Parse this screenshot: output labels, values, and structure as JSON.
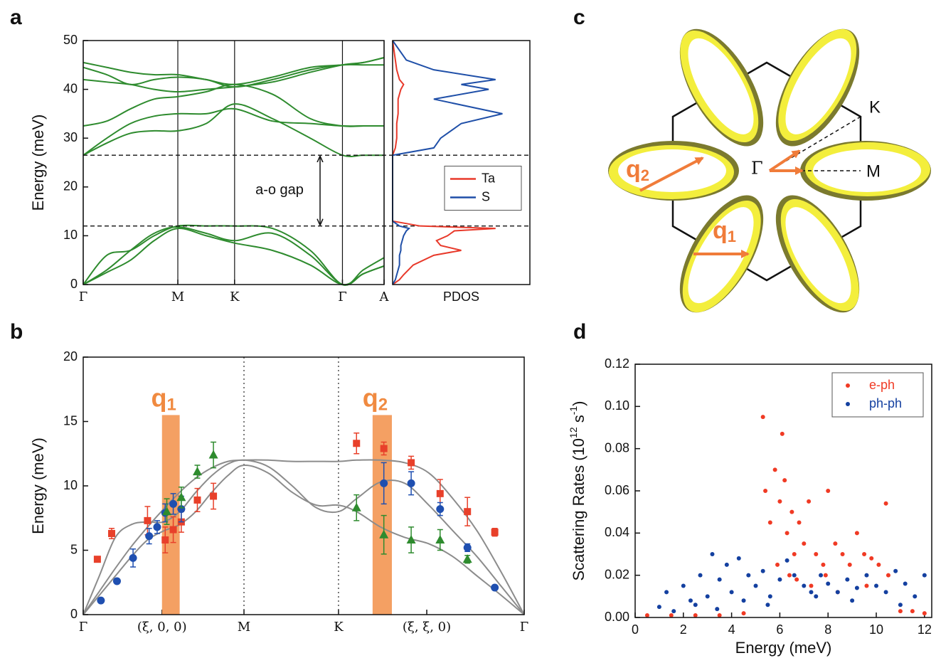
{
  "panel_labels": [
    "a",
    "b",
    "c",
    "d"
  ],
  "diagram": {
    "gamma": "Γ",
    "K": "K",
    "M": "M",
    "q2": {
      "symbol": "q",
      "index": "2"
    },
    "q1": {
      "symbol": "q",
      "index": "1"
    }
  },
  "chart_data": [
    {
      "type": "line",
      "y_label": "Energy (meV)",
      "xlim": [
        0,
        3.18
      ],
      "ylim": [
        0,
        50
      ],
      "xticks": [
        {
          "value": 0,
          "label": "Γ"
        },
        {
          "value": 1,
          "label": "M"
        },
        {
          "value": 1.6,
          "label": "K"
        },
        {
          "value": 2.74,
          "label": "Γ"
        },
        {
          "value": 3.18,
          "label": "A"
        }
      ],
      "yticks": [
        0,
        10,
        20,
        30,
        40,
        50
      ],
      "tick_lines": true,
      "reference_lines": {
        "y": [
          26.5,
          12
        ],
        "style": "dashed"
      },
      "annotation": "a-o gap",
      "x": [
        0,
        0.25,
        0.5,
        0.75,
        1,
        1.3,
        1.6,
        2.0,
        2.4,
        2.74,
        2.96,
        3.18
      ],
      "series": [
        {
          "color": "#2e8b2e",
          "values": [
            0,
            6,
            7,
            10,
            12,
            12,
            12,
            11.5,
            7,
            0,
            3,
            5.5
          ]
        },
        {
          "color": "#2e8b2e",
          "values": [
            0,
            3,
            7,
            10.5,
            11.8,
            10.5,
            9,
            10.5,
            6,
            0,
            2.2,
            3.8
          ]
        },
        {
          "color": "#2e8b2e",
          "values": [
            0,
            2.5,
            5,
            9,
            11.5,
            10,
            8.5,
            7,
            4,
            0,
            2.2,
            3.8
          ]
        },
        {
          "color": "#2e8b2e",
          "values": [
            26.5,
            29,
            31,
            31.5,
            31.5,
            33,
            37,
            34,
            30,
            26.5,
            26.5,
            26.5
          ]
        },
        {
          "color": "#2e8b2e",
          "values": [
            26.5,
            30,
            33,
            34.5,
            35,
            35,
            36,
            33.5,
            33,
            32.5,
            32.5,
            32.5
          ]
        },
        {
          "color": "#2e8b2e",
          "values": [
            32.5,
            33.5,
            36,
            38,
            38.5,
            39.5,
            41,
            39,
            34,
            32.5,
            32.5,
            32.5
          ]
        },
        {
          "color": "#2e8b2e",
          "values": [
            44.5,
            43,
            41,
            42,
            42.5,
            42,
            40.5,
            42,
            44,
            45,
            45,
            45
          ]
        },
        {
          "color": "#2e8b2e",
          "values": [
            45.5,
            44.5,
            43.5,
            43,
            43,
            42,
            41,
            42.5,
            44.5,
            45,
            45.5,
            46.5
          ]
        },
        {
          "color": "#2e8b2e",
          "values": [
            42,
            41.5,
            41,
            40,
            39.5,
            40,
            40.5,
            41.5,
            43.5,
            45,
            45.5,
            46.5
          ]
        }
      ]
    },
    {
      "type": "profile",
      "x_label": "PDOS",
      "xlim": [
        0,
        1
      ],
      "ylim": [
        0,
        50
      ],
      "legend": "center-right",
      "energy": [
        0,
        1,
        2,
        4,
        6,
        7,
        8,
        9,
        10,
        11,
        11.5,
        12,
        13,
        20,
        26.5,
        28,
        30,
        33,
        35,
        38,
        40,
        41,
        42,
        44,
        46,
        50
      ],
      "series": [
        {
          "name": "Ta",
          "color": "#e8392a",
          "values": [
            0,
            0.05,
            0.08,
            0.15,
            0.3,
            0.5,
            0.35,
            0.32,
            0.4,
            0.45,
            0.75,
            0.2,
            0,
            0,
            0,
            0.02,
            0.03,
            0.03,
            0.04,
            0.04,
            0.06,
            0.08,
            0.05,
            0.03,
            0.02,
            0
          ]
        },
        {
          "name": "S",
          "color": "#1f4fa8",
          "values": [
            0,
            0.02,
            0.03,
            0.05,
            0.05,
            0.06,
            0.06,
            0.07,
            0.08,
            0.1,
            0.12,
            0.05,
            0,
            0,
            0,
            0.3,
            0.35,
            0.5,
            0.8,
            0.3,
            0.7,
            0.5,
            0.75,
            0.3,
            0.1,
            0
          ]
        }
      ]
    },
    {
      "type": "errorbar",
      "y_label": "Energy (meV)",
      "xlim": [
        0,
        2.743
      ],
      "ylim": [
        0,
        20
      ],
      "xticks": [
        {
          "value": 0,
          "label": "Γ"
        },
        {
          "value": 0.49,
          "label": "(ξ, 0, 0)"
        },
        {
          "value": 1,
          "label": "M"
        },
        {
          "value": 1.588,
          "label": "K"
        },
        {
          "value": 2.137,
          "label": "(ξ, ξ, 0)"
        },
        {
          "value": 2.743,
          "label": "Γ"
        }
      ],
      "yticks": [
        0,
        5,
        10,
        15,
        20
      ],
      "reference_lines": {
        "x": [
          1,
          1.588
        ],
        "style": "dotted"
      },
      "highlights": [
        {
          "symbol": "q",
          "index": "1",
          "x": [
            0.49,
            0.6
          ],
          "top": 15.5,
          "color": "#f4a063"
        },
        {
          "symbol": "q",
          "index": "2",
          "x": [
            1.8,
            1.92
          ],
          "top": 15.5,
          "color": "#f4a063"
        }
      ],
      "curves": {
        "color": "#8c8c8c",
        "x": [
          0,
          0.1,
          0.2,
          0.3,
          0.4,
          0.5,
          0.6,
          0.7,
          0.8,
          0.9,
          1,
          1.15,
          1.3,
          1.45,
          1.588,
          1.7,
          1.85,
          2.0,
          2.15,
          2.3,
          2.45,
          2.6,
          2.743
        ],
        "series": [
          [
            0,
            3,
            6,
            7,
            7.2,
            7.2,
            8,
            9.5,
            10.8,
            11.7,
            12,
            11.5,
            10,
            8.3,
            8,
            9,
            10.3,
            10.2,
            8.5,
            6.5,
            4.5,
            2.2,
            0
          ],
          [
            0,
            1.8,
            3.6,
            5.3,
            6.8,
            8.2,
            9.5,
            10.6,
            11.4,
            11.9,
            12,
            12,
            11.9,
            11.9,
            11.9,
            12,
            12,
            11.8,
            11,
            9,
            6.5,
            3.3,
            0
          ],
          [
            0,
            1.5,
            3,
            4.5,
            5.8,
            6.5,
            7,
            8,
            9.5,
            10.8,
            11.6,
            11,
            9.5,
            8.5,
            8.5,
            8,
            6.8,
            6,
            5.5,
            4.5,
            3,
            1.5,
            0
          ]
        ]
      },
      "series": [
        {
          "marker": "square",
          "color": "#e8402a",
          "x": [
            0.088,
            0.177,
            0.4,
            0.51,
            0.56,
            0.61,
            0.71,
            0.81,
            1.7,
            1.87,
            2.04,
            2.22,
            2.39,
            2.56
          ],
          "values": [
            4.3,
            6.3,
            7.3,
            5.8,
            6.6,
            7.2,
            8.9,
            9.2,
            13.3,
            12.9,
            11.8,
            9.4,
            8.0,
            6.4
          ],
          "errors": [
            0,
            0.4,
            1.1,
            1.0,
            1.0,
            0.8,
            0.9,
            1.0,
            0.8,
            0.5,
            0.5,
            1.1,
            1.1,
            0.3
          ]
        },
        {
          "marker": "circle",
          "color": "#1f4fb0",
          "x": [
            0.11,
            0.21,
            0.31,
            0.41,
            0.46,
            0.51,
            0.56,
            0.61,
            1.87,
            2.04,
            2.22,
            2.39,
            2.56
          ],
          "values": [
            1.1,
            2.6,
            4.4,
            6.1,
            6.8,
            7.9,
            8.6,
            8.2,
            10.2,
            10.2,
            8.2,
            5.2,
            2.1
          ],
          "errors": [
            0,
            0,
            0.7,
            0.6,
            0.5,
            0.7,
            0.8,
            1.0,
            1.6,
            0.9,
            0.5,
            0.3,
            0
          ]
        },
        {
          "marker": "triangle",
          "color": "#2e8b2e",
          "x": [
            0.52,
            0.61,
            0.71,
            0.81,
            1.7,
            1.87,
            2.04,
            2.22,
            2.39
          ],
          "values": [
            8.0,
            9.1,
            11.1,
            12.4,
            8.3,
            6.2,
            5.8,
            5.8,
            4.3
          ],
          "errors": [
            1.0,
            0.8,
            0.5,
            1.0,
            1.0,
            1.5,
            1.0,
            0.8,
            0.3
          ]
        }
      ]
    },
    {
      "type": "scatter",
      "x_label": "Energy (meV)",
      "y_label": [
        "Scattering Rates (10",
        "12",
        " s",
        "-1",
        ")"
      ],
      "xlim": [
        0,
        12.3
      ],
      "ylim": [
        0,
        0.12
      ],
      "xticks": [
        0,
        2,
        4,
        6,
        8,
        10,
        12
      ],
      "yticks": [
        {
          "value": 0,
          "label": "0.00"
        },
        {
          "value": 0.02,
          "label": "0.02"
        },
        {
          "value": 0.04,
          "label": "0.04"
        },
        {
          "value": 0.06,
          "label": "0.06"
        },
        {
          "value": 0.08,
          "label": "0.08"
        },
        {
          "value": 0.1,
          "label": "0.10"
        },
        {
          "value": 0.12,
          "label": "0.12"
        }
      ],
      "legend": "upper-right",
      "series": [
        {
          "name": "e-ph",
          "color": "#f03a24",
          "x": [
            0.5,
            1.5,
            2.5,
            3.5,
            4.5,
            5.3,
            5.4,
            5.6,
            5.8,
            6.0,
            6.1,
            6.2,
            6.3,
            6.5,
            6.6,
            6.8,
            7.0,
            7.2,
            7.5,
            7.8,
            8.0,
            8.3,
            8.6,
            8.9,
            9.2,
            9.5,
            9.8,
            10.1,
            10.4,
            10.5,
            11,
            11.5,
            12,
            6.4,
            7.3,
            8.4,
            9.6,
            5.9,
            6.7,
            7.9
          ],
          "values": [
            0.001,
            0.001,
            0.001,
            0.001,
            0.002,
            0.095,
            0.06,
            0.045,
            0.07,
            0.055,
            0.087,
            0.065,
            0.04,
            0.05,
            0.03,
            0.045,
            0.035,
            0.055,
            0.03,
            0.025,
            0.06,
            0.035,
            0.03,
            0.025,
            0.04,
            0.03,
            0.028,
            0.025,
            0.054,
            0.02,
            0.003,
            0.003,
            0.002,
            0.02,
            0.015,
            0.012,
            0.015,
            0.025,
            0.018,
            0.02
          ]
        },
        {
          "name": "ph-ph",
          "color": "#1440a0",
          "x": [
            1,
            1.3,
            1.6,
            2,
            2.3,
            2.7,
            3,
            3.2,
            3.5,
            3.8,
            4,
            4.3,
            4.7,
            5,
            5.3,
            5.6,
            6,
            6.3,
            6.6,
            7,
            7.3,
            7.7,
            8,
            8.4,
            8.8,
            9.2,
            9.6,
            10,
            10.4,
            10.8,
            11.2,
            11.6,
            12,
            2.5,
            3.4,
            4.5,
            5.5,
            7.5,
            9,
            11
          ],
          "values": [
            0.005,
            0.012,
            0.003,
            0.015,
            0.008,
            0.02,
            0.01,
            0.03,
            0.018,
            0.025,
            0.012,
            0.028,
            0.02,
            0.015,
            0.022,
            0.01,
            0.018,
            0.027,
            0.02,
            0.015,
            0.012,
            0.02,
            0.016,
            0.012,
            0.018,
            0.014,
            0.02,
            0.015,
            0.012,
            0.022,
            0.016,
            0.01,
            0.02,
            0.006,
            0.004,
            0.008,
            0.006,
            0.01,
            0.008,
            0.006
          ]
        }
      ]
    }
  ]
}
